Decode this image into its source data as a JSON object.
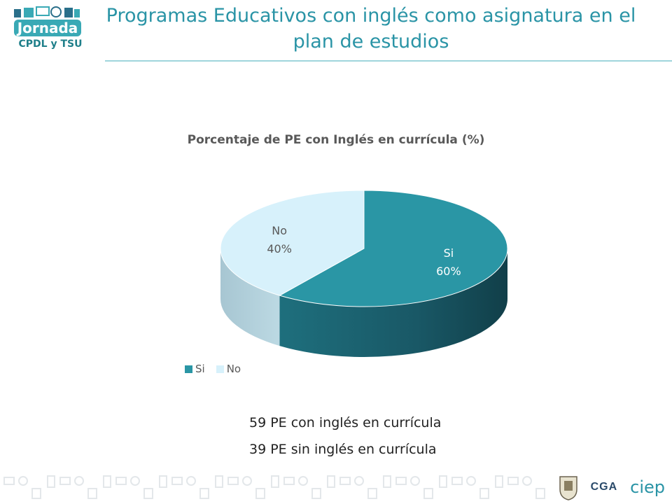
{
  "header": {
    "logo_text": "Jornada",
    "logo_sub": "CPDL y TSU",
    "title_line1": "Programas Educativos con inglés como asignatura en el",
    "title_line2": "plan de estudios"
  },
  "chart_data": {
    "type": "pie",
    "title": "Porcentaje de PE con Inglés en currícula (%)",
    "categories": [
      "Si",
      "No"
    ],
    "values": [
      60,
      40
    ],
    "labels": [
      "60%",
      "40%"
    ],
    "colors": [
      "#2a96a5",
      "#d7f1fb"
    ],
    "legend_position": "bottom-left"
  },
  "notes": [
    "59 PE con inglés en currícula",
    "39 PE sin inglés en currícula"
  ],
  "footer": {
    "cga": "CGA",
    "ciep": "ciep"
  }
}
